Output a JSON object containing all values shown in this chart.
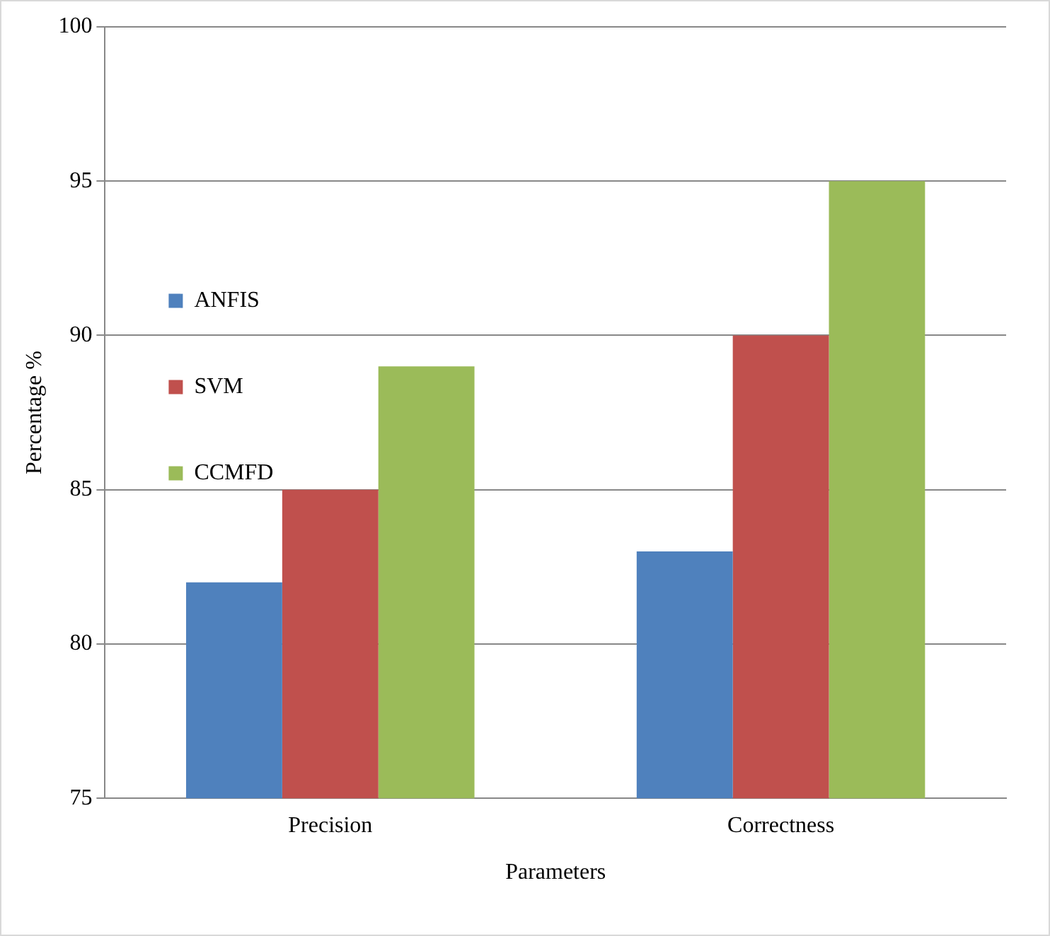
{
  "chart_data": {
    "type": "bar",
    "categories": [
      "Precision",
      "Correctness"
    ],
    "series": [
      {
        "name": "ANFIS",
        "color": "#4f81bd",
        "values": [
          82,
          83
        ]
      },
      {
        "name": "SVM",
        "color": "#c0504d",
        "values": [
          85,
          90
        ]
      },
      {
        "name": "CCMFD",
        "color": "#9bbb59",
        "values": [
          89,
          95
        ]
      }
    ],
    "xlabel": "Parameters",
    "ylabel": "Percentage %",
    "ylim": [
      75,
      100
    ],
    "yticks": [
      75,
      80,
      85,
      90,
      95,
      100
    ],
    "grid": "y",
    "legend": "top"
  }
}
